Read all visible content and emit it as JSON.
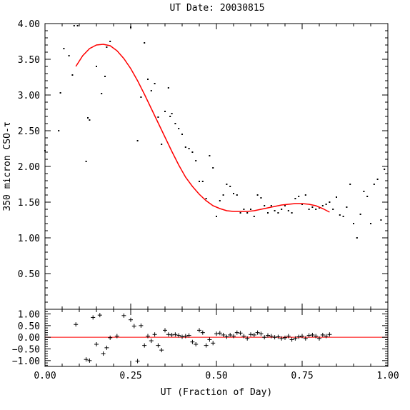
{
  "chart_data": {
    "type": "scatter",
    "title": "UT Date: 20030815",
    "xlabel": "UT (Fraction of Day)",
    "ylabel": "350 micron CSO-τ",
    "xlim": [
      0,
      1
    ],
    "ylim": [
      0,
      4
    ],
    "x_ticks": [
      "0.00",
      "0.25",
      "0.50",
      "0.75",
      "1.00"
    ],
    "y_ticks": [
      "0.50",
      "1.00",
      "1.50",
      "2.00",
      "2.50",
      "3.00",
      "3.50",
      "4.00"
    ],
    "colors": {
      "fit": "#ff0000",
      "points": "#000000",
      "frame": "#000000"
    },
    "points": {
      "x": [
        0.0,
        0.04,
        0.045,
        0.055,
        0.07,
        0.08,
        0.085,
        0.095,
        0.12,
        0.125,
        0.13,
        0.15,
        0.165,
        0.175,
        0.18,
        0.19,
        0.25,
        0.27,
        0.28,
        0.29,
        0.3,
        0.31,
        0.32,
        0.33,
        0.34,
        0.35,
        0.36,
        0.365,
        0.37,
        0.38,
        0.39,
        0.4,
        0.41,
        0.42,
        0.43,
        0.44,
        0.45,
        0.46,
        0.47,
        0.48,
        0.49,
        0.5,
        0.51,
        0.52,
        0.53,
        0.54,
        0.55,
        0.56,
        0.57,
        0.58,
        0.59,
        0.6,
        0.61,
        0.62,
        0.63,
        0.64,
        0.65,
        0.66,
        0.67,
        0.68,
        0.69,
        0.7,
        0.71,
        0.72,
        0.73,
        0.74,
        0.75,
        0.76,
        0.77,
        0.78,
        0.79,
        0.8,
        0.81,
        0.82,
        0.83,
        0.84,
        0.85,
        0.86,
        0.87,
        0.88,
        0.89,
        0.9,
        0.91,
        0.92,
        0.93,
        0.94,
        0.95,
        0.96,
        0.97,
        0.98,
        0.99
      ],
      "y": [
        2.22,
        2.5,
        3.03,
        3.65,
        3.55,
        3.28,
        3.97,
        3.97,
        2.07,
        2.68,
        2.65,
        3.4,
        3.02,
        3.26,
        3.67,
        3.75,
        3.95,
        2.36,
        2.97,
        3.73,
        3.22,
        3.06,
        3.16,
        2.69,
        2.31,
        2.77,
        3.1,
        2.7,
        2.74,
        2.6,
        2.53,
        2.45,
        2.27,
        2.25,
        2.2,
        2.08,
        1.79,
        1.79,
        1.55,
        2.15,
        1.98,
        1.3,
        1.52,
        1.6,
        1.75,
        1.72,
        1.62,
        1.6,
        1.35,
        1.4,
        1.35,
        1.4,
        1.3,
        1.6,
        1.56,
        1.45,
        1.35,
        1.45,
        1.38,
        1.35,
        1.4,
        1.45,
        1.38,
        1.35,
        1.55,
        1.58,
        1.47,
        1.6,
        1.4,
        1.43,
        1.4,
        1.42,
        1.45,
        1.47,
        1.5,
        1.4,
        1.57,
        1.32,
        1.3,
        1.43,
        1.75,
        1.2,
        1.0,
        1.33,
        1.65,
        1.58,
        1.2,
        1.75,
        1.82,
        1.25,
        1.96
      ]
    },
    "fit": {
      "x": [
        0.09,
        0.11,
        0.13,
        0.15,
        0.17,
        0.19,
        0.21,
        0.23,
        0.25,
        0.27,
        0.29,
        0.31,
        0.33,
        0.35,
        0.37,
        0.39,
        0.41,
        0.43,
        0.45,
        0.47,
        0.49,
        0.51,
        0.53,
        0.55,
        0.57,
        0.59,
        0.61,
        0.63,
        0.65,
        0.67,
        0.69,
        0.71,
        0.73,
        0.75,
        0.77,
        0.79,
        0.81,
        0.83
      ],
      "y": [
        3.4,
        3.55,
        3.65,
        3.7,
        3.71,
        3.69,
        3.62,
        3.51,
        3.37,
        3.2,
        3.01,
        2.81,
        2.61,
        2.41,
        2.21,
        2.02,
        1.85,
        1.72,
        1.61,
        1.52,
        1.45,
        1.41,
        1.38,
        1.37,
        1.37,
        1.37,
        1.38,
        1.4,
        1.42,
        1.44,
        1.46,
        1.47,
        1.48,
        1.48,
        1.47,
        1.45,
        1.41,
        1.36
      ]
    },
    "residuals": {
      "ylim": [
        -1.25,
        1.2
      ],
      "y_ticks": [
        "1.00",
        "0.50",
        "0.00",
        "−0.50",
        "−1.00"
      ],
      "zero_line": 0,
      "x": [
        0.09,
        0.12,
        0.13,
        0.14,
        0.15,
        0.16,
        0.17,
        0.18,
        0.19,
        0.21,
        0.23,
        0.25,
        0.26,
        0.27,
        0.28,
        0.29,
        0.3,
        0.31,
        0.32,
        0.33,
        0.34,
        0.35,
        0.36,
        0.37,
        0.38,
        0.39,
        0.4,
        0.41,
        0.42,
        0.43,
        0.44,
        0.45,
        0.46,
        0.47,
        0.48,
        0.49,
        0.5,
        0.51,
        0.52,
        0.53,
        0.54,
        0.55,
        0.56,
        0.57,
        0.58,
        0.59,
        0.6,
        0.61,
        0.62,
        0.63,
        0.64,
        0.65,
        0.66,
        0.67,
        0.68,
        0.69,
        0.7,
        0.71,
        0.72,
        0.73,
        0.74,
        0.75,
        0.76,
        0.77,
        0.78,
        0.79,
        0.8,
        0.81,
        0.82,
        0.83
      ],
      "y": [
        0.55,
        -0.95,
        -1.0,
        0.85,
        -0.3,
        0.95,
        -0.7,
        -0.45,
        -0.02,
        0.05,
        0.93,
        0.75,
        0.48,
        -1.02,
        0.5,
        -0.35,
        0.05,
        -0.15,
        0.12,
        -0.35,
        -0.55,
        0.3,
        0.12,
        0.1,
        0.12,
        0.08,
        0.02,
        0.05,
        0.08,
        -0.2,
        -0.3,
        0.3,
        0.2,
        -0.35,
        -0.1,
        -0.25,
        0.15,
        0.18,
        0.1,
        0.02,
        0.1,
        0.05,
        0.2,
        0.18,
        0.05,
        -0.05,
        0.12,
        0.1,
        0.2,
        0.15,
        0.0,
        0.08,
        0.05,
        0.0,
        0.02,
        -0.05,
        -0.02,
        0.05,
        -0.1,
        -0.05,
        0.02,
        0.05,
        -0.05,
        0.08,
        0.1,
        0.05,
        -0.05,
        0.1,
        0.05,
        0.12
      ]
    }
  }
}
